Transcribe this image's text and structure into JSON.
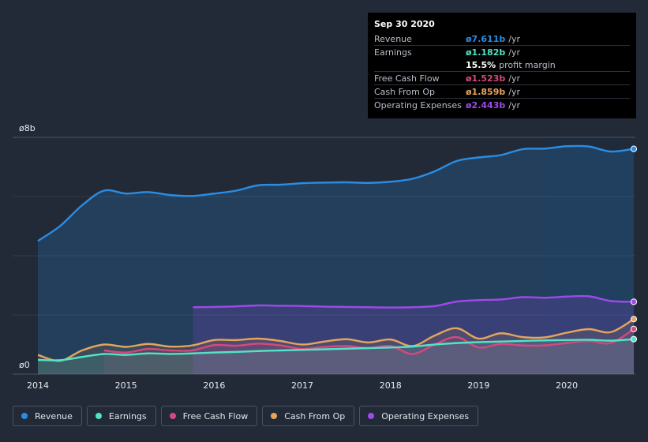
{
  "chart_data": {
    "type": "area",
    "y_axis_labels": {
      "top": "ø8b",
      "bottom": "ø0"
    },
    "ylim": [
      0,
      8
    ],
    "xlim": [
      2014.0,
      2020.76
    ],
    "x_ticks": [
      {
        "value": 2014,
        "label": "2014"
      },
      {
        "value": 2015,
        "label": "2015"
      },
      {
        "value": 2016,
        "label": "2016"
      },
      {
        "value": 2017,
        "label": "2017"
      },
      {
        "value": 2018,
        "label": "2018"
      },
      {
        "value": 2019,
        "label": "2019"
      },
      {
        "value": 2020,
        "label": "2020"
      }
    ],
    "highlight_from": 2019.76,
    "series": [
      {
        "key": "revenue",
        "name": "Revenue",
        "color": "#2a8de3",
        "points": [
          [
            2014.0,
            4.5
          ],
          [
            2014.25,
            5.0
          ],
          [
            2014.5,
            5.7
          ],
          [
            2014.75,
            6.2
          ],
          [
            2015.0,
            6.1
          ],
          [
            2015.25,
            6.15
          ],
          [
            2015.5,
            6.05
          ],
          [
            2015.75,
            6.02
          ],
          [
            2016.0,
            6.1
          ],
          [
            2016.25,
            6.2
          ],
          [
            2016.5,
            6.38
          ],
          [
            2016.75,
            6.4
          ],
          [
            2017.0,
            6.45
          ],
          [
            2017.25,
            6.47
          ],
          [
            2017.5,
            6.48
          ],
          [
            2017.75,
            6.46
          ],
          [
            2018.0,
            6.5
          ],
          [
            2018.25,
            6.6
          ],
          [
            2018.5,
            6.85
          ],
          [
            2018.75,
            7.2
          ],
          [
            2019.0,
            7.32
          ],
          [
            2019.25,
            7.4
          ],
          [
            2019.5,
            7.6
          ],
          [
            2019.75,
            7.62
          ],
          [
            2020.0,
            7.7
          ],
          [
            2020.25,
            7.69
          ],
          [
            2020.5,
            7.52
          ],
          [
            2020.76,
            7.611
          ]
        ]
      },
      {
        "key": "operating_expenses",
        "name": "Operating Expenses",
        "color": "#9d4ae8",
        "points": [
          [
            2015.76,
            2.26
          ],
          [
            2016.0,
            2.27
          ],
          [
            2016.25,
            2.29
          ],
          [
            2016.5,
            2.32
          ],
          [
            2016.75,
            2.31
          ],
          [
            2017.0,
            2.3
          ],
          [
            2017.25,
            2.28
          ],
          [
            2017.5,
            2.27
          ],
          [
            2017.75,
            2.26
          ],
          [
            2018.0,
            2.25
          ],
          [
            2018.25,
            2.26
          ],
          [
            2018.5,
            2.3
          ],
          [
            2018.75,
            2.45
          ],
          [
            2019.0,
            2.5
          ],
          [
            2019.25,
            2.52
          ],
          [
            2019.5,
            2.6
          ],
          [
            2019.75,
            2.58
          ],
          [
            2020.0,
            2.62
          ],
          [
            2020.25,
            2.63
          ],
          [
            2020.5,
            2.47
          ],
          [
            2020.76,
            2.443
          ]
        ]
      },
      {
        "key": "cash_from_op",
        "name": "Cash From Op",
        "color": "#e5a55a",
        "points": [
          [
            2014.0,
            0.65
          ],
          [
            2014.25,
            0.45
          ],
          [
            2014.5,
            0.8
          ],
          [
            2014.75,
            1.0
          ],
          [
            2015.0,
            0.92
          ],
          [
            2015.25,
            1.02
          ],
          [
            2015.5,
            0.93
          ],
          [
            2015.75,
            0.97
          ],
          [
            2016.0,
            1.15
          ],
          [
            2016.25,
            1.15
          ],
          [
            2016.5,
            1.2
          ],
          [
            2016.75,
            1.12
          ],
          [
            2017.0,
            1.0
          ],
          [
            2017.25,
            1.1
          ],
          [
            2017.5,
            1.18
          ],
          [
            2017.75,
            1.07
          ],
          [
            2018.0,
            1.17
          ],
          [
            2018.25,
            0.95
          ],
          [
            2018.5,
            1.3
          ],
          [
            2018.75,
            1.55
          ],
          [
            2019.0,
            1.2
          ],
          [
            2019.25,
            1.38
          ],
          [
            2019.5,
            1.25
          ],
          [
            2019.75,
            1.24
          ],
          [
            2020.0,
            1.4
          ],
          [
            2020.25,
            1.52
          ],
          [
            2020.5,
            1.42
          ],
          [
            2020.76,
            1.859
          ]
        ]
      },
      {
        "key": "free_cash_flow",
        "name": "Free Cash Flow",
        "color": "#d6487f",
        "points": [
          [
            2014.75,
            0.8
          ],
          [
            2015.0,
            0.73
          ],
          [
            2015.25,
            0.85
          ],
          [
            2015.5,
            0.8
          ],
          [
            2015.75,
            0.8
          ],
          [
            2016.0,
            0.98
          ],
          [
            2016.25,
            0.96
          ],
          [
            2016.5,
            1.03
          ],
          [
            2016.75,
            0.97
          ],
          [
            2017.0,
            0.85
          ],
          [
            2017.25,
            0.92
          ],
          [
            2017.5,
            0.95
          ],
          [
            2017.75,
            0.88
          ],
          [
            2018.0,
            0.95
          ],
          [
            2018.25,
            0.68
          ],
          [
            2018.5,
            1.0
          ],
          [
            2018.75,
            1.25
          ],
          [
            2019.0,
            0.9
          ],
          [
            2019.25,
            1.02
          ],
          [
            2019.5,
            0.97
          ],
          [
            2019.75,
            0.97
          ],
          [
            2020.0,
            1.05
          ],
          [
            2020.25,
            1.12
          ],
          [
            2020.5,
            1.05
          ],
          [
            2020.76,
            1.523
          ]
        ]
      },
      {
        "key": "earnings",
        "name": "Earnings",
        "color": "#52e3c7",
        "points": [
          [
            2014.0,
            0.48
          ],
          [
            2014.25,
            0.47
          ],
          [
            2014.5,
            0.58
          ],
          [
            2014.75,
            0.68
          ],
          [
            2015.0,
            0.65
          ],
          [
            2015.25,
            0.7
          ],
          [
            2015.5,
            0.68
          ],
          [
            2015.75,
            0.7
          ],
          [
            2016.0,
            0.73
          ],
          [
            2016.25,
            0.75
          ],
          [
            2016.5,
            0.78
          ],
          [
            2016.75,
            0.8
          ],
          [
            2017.0,
            0.82
          ],
          [
            2017.25,
            0.84
          ],
          [
            2017.5,
            0.86
          ],
          [
            2017.75,
            0.88
          ],
          [
            2018.0,
            0.9
          ],
          [
            2018.25,
            0.93
          ],
          [
            2018.5,
            1.0
          ],
          [
            2018.75,
            1.05
          ],
          [
            2019.0,
            1.08
          ],
          [
            2019.25,
            1.1
          ],
          [
            2019.5,
            1.12
          ],
          [
            2019.75,
            1.14
          ],
          [
            2020.0,
            1.15
          ],
          [
            2020.25,
            1.16
          ],
          [
            2020.5,
            1.13
          ],
          [
            2020.76,
            1.182
          ]
        ]
      }
    ]
  },
  "tooltip": {
    "date": "Sep 30 2020",
    "rows": [
      {
        "label": "Revenue",
        "value": "ø7.611b",
        "unit": "/yr",
        "color": "#2a8de3"
      },
      {
        "label": "Earnings",
        "value": "ø1.182b",
        "unit": "/yr",
        "color": "#52e3c7"
      },
      {
        "label": "Free Cash Flow",
        "value": "ø1.523b",
        "unit": "/yr",
        "color": "#d6487f"
      },
      {
        "label": "Cash From Op",
        "value": "ø1.859b",
        "unit": "/yr",
        "color": "#e5a55a"
      },
      {
        "label": "Operating Expenses",
        "value": "ø2.443b",
        "unit": "/yr",
        "color": "#9d4ae8"
      }
    ],
    "margin_value": "15.5%",
    "margin_text": "profit margin"
  },
  "legend": [
    {
      "label": "Revenue",
      "color": "#2a8de3"
    },
    {
      "label": "Earnings",
      "color": "#52e3c7"
    },
    {
      "label": "Free Cash Flow",
      "color": "#d6487f"
    },
    {
      "label": "Cash From Op",
      "color": "#e5a55a"
    },
    {
      "label": "Operating Expenses",
      "color": "#9d4ae8"
    }
  ]
}
